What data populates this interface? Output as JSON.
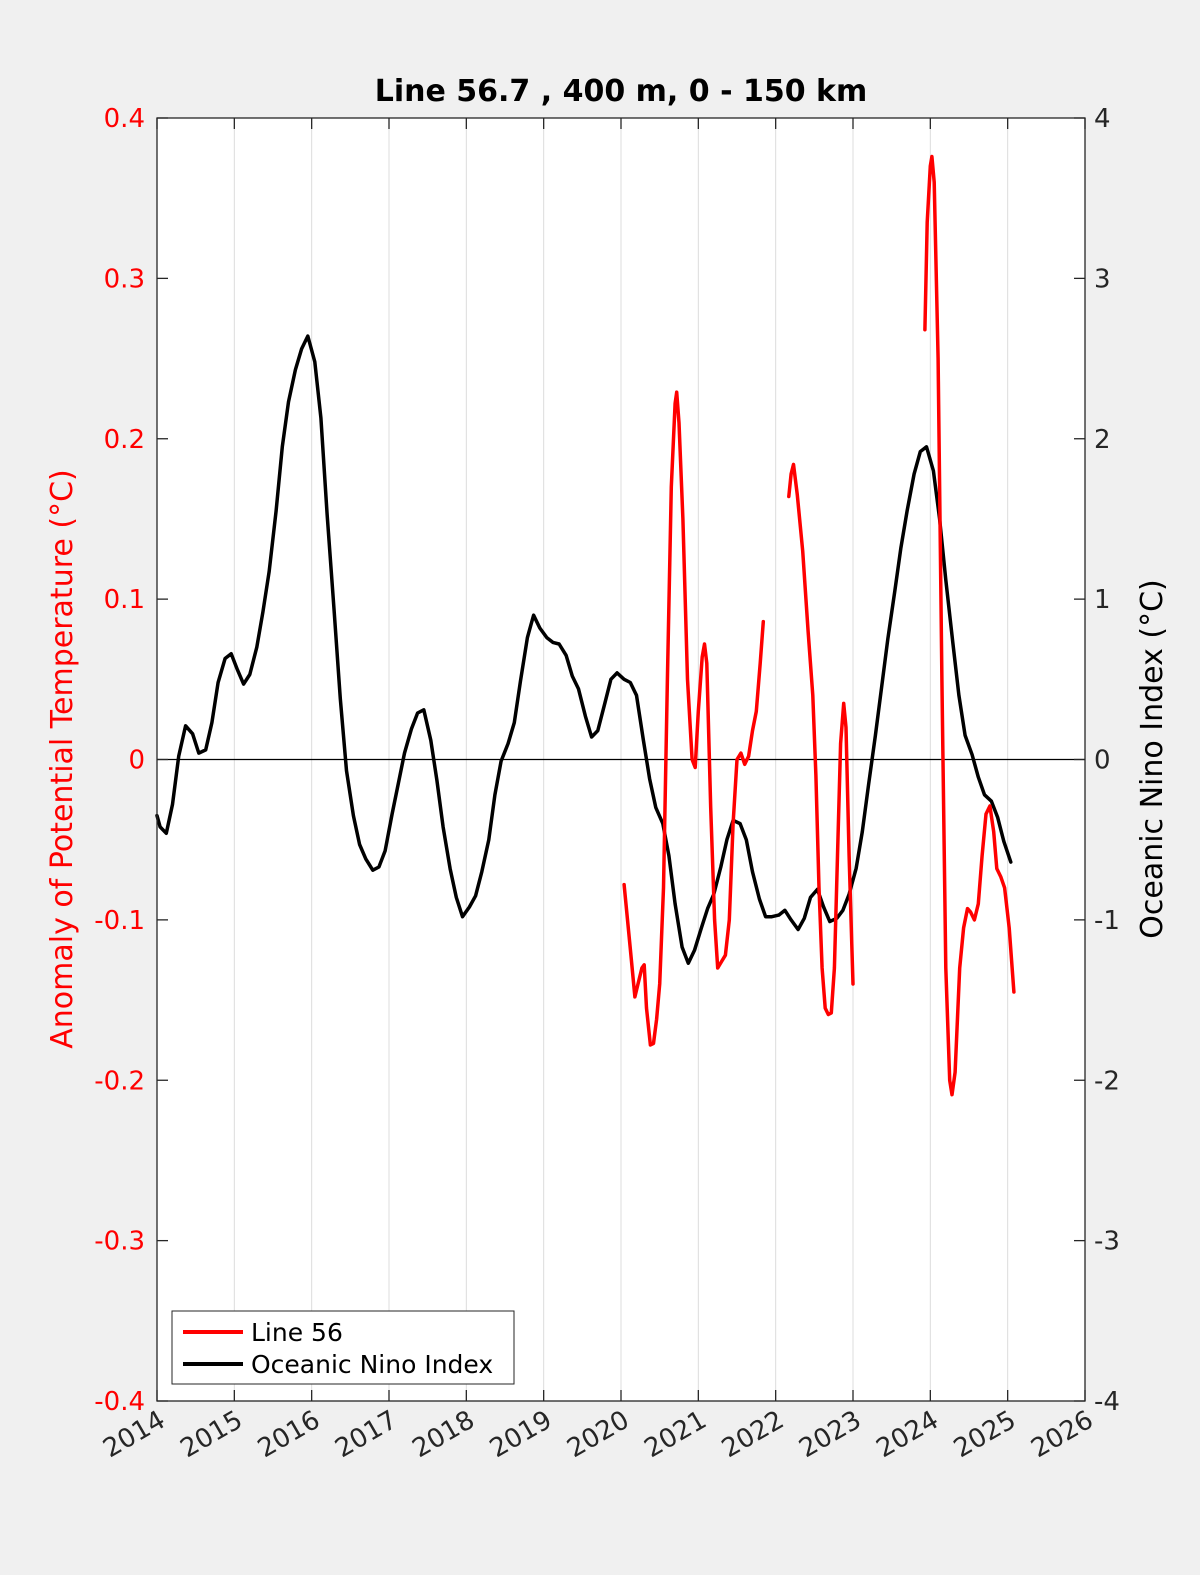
{
  "chart_data": {
    "type": "line",
    "title": "Line 56.7 , 400 m, 0 - 150 km",
    "xlim": [
      2014,
      2026
    ],
    "x_ticks": [
      "2014",
      "2015",
      "2016",
      "2017",
      "2018",
      "2019",
      "2020",
      "2021",
      "2022",
      "2023",
      "2024",
      "2025",
      "2026"
    ],
    "ylabel_left": "Anomaly of Potential Temperature (°C)",
    "ylim_left": [
      -0.4,
      0.4
    ],
    "y_ticks_left": [
      "-0.4",
      "-0.3",
      "-0.2",
      "-0.1",
      "0",
      "0.1",
      "0.2",
      "0.3",
      "0.4"
    ],
    "ylabel_right": "Oceanic Nino Index (°C)",
    "ylim_right": [
      -4,
      4
    ],
    "y_ticks_right": [
      "-4",
      "-3",
      "-2",
      "-1",
      "0",
      "1",
      "2",
      "3",
      "4"
    ],
    "grid": "vertical",
    "zero_line": true,
    "legend_position": "bottom-left",
    "colors": {
      "line56": "#ff0000",
      "oni": "#000000"
    },
    "series": [
      {
        "name": "Line 56",
        "axis": "left",
        "segments": [
          [
            [
              2020.04,
              -0.078
            ],
            [
              2020.12,
              -0.118
            ],
            [
              2020.18,
              -0.148
            ],
            [
              2020.22,
              -0.14
            ],
            [
              2020.27,
              -0.13
            ],
            [
              2020.3,
              -0.128
            ],
            [
              2020.33,
              -0.155
            ],
            [
              2020.38,
              -0.178
            ],
            [
              2020.42,
              -0.177
            ],
            [
              2020.46,
              -0.162
            ],
            [
              2020.5,
              -0.14
            ],
            [
              2020.55,
              -0.08
            ],
            [
              2020.6,
              0.05
            ],
            [
              2020.65,
              0.17
            ],
            [
              2020.7,
              0.222
            ],
            [
              2020.72,
              0.229
            ],
            [
              2020.75,
              0.21
            ],
            [
              2020.8,
              0.15
            ],
            [
              2020.86,
              0.05
            ],
            [
              2020.92,
              0.0
            ],
            [
              2020.96,
              -0.005
            ],
            [
              2021.0,
              0.03
            ],
            [
              2021.05,
              0.064
            ],
            [
              2021.08,
              0.072
            ],
            [
              2021.11,
              0.06
            ],
            [
              2021.16,
              -0.03
            ],
            [
              2021.21,
              -0.1
            ],
            [
              2021.25,
              -0.13
            ],
            [
              2021.3,
              -0.126
            ],
            [
              2021.35,
              -0.122
            ],
            [
              2021.4,
              -0.1
            ],
            [
              2021.45,
              -0.04
            ],
            [
              2021.5,
              0.0
            ],
            [
              2021.55,
              0.004
            ],
            [
              2021.6,
              -0.003
            ],
            [
              2021.65,
              0.002
            ],
            [
              2021.7,
              0.018
            ],
            [
              2021.75,
              0.03
            ],
            [
              2021.8,
              0.06
            ],
            [
              2021.84,
              0.086
            ]
          ],
          [
            [
              2022.17,
              0.164
            ],
            [
              2022.2,
              0.178
            ],
            [
              2022.23,
              0.184
            ],
            [
              2022.28,
              0.165
            ],
            [
              2022.35,
              0.13
            ],
            [
              2022.42,
              0.08
            ],
            [
              2022.48,
              0.04
            ],
            [
              2022.52,
              -0.01
            ],
            [
              2022.56,
              -0.08
            ],
            [
              2022.6,
              -0.13
            ],
            [
              2022.64,
              -0.155
            ],
            [
              2022.68,
              -0.159
            ],
            [
              2022.72,
              -0.158
            ],
            [
              2022.76,
              -0.13
            ],
            [
              2022.8,
              -0.06
            ],
            [
              2022.84,
              0.01
            ],
            [
              2022.88,
              0.035
            ],
            [
              2022.91,
              0.02
            ],
            [
              2022.95,
              -0.06
            ],
            [
              2023.0,
              -0.14
            ]
          ],
          [
            [
              2023.93,
              0.268
            ],
            [
              2023.96,
              0.335
            ],
            [
              2024.0,
              0.37
            ],
            [
              2024.02,
              0.376
            ],
            [
              2024.05,
              0.36
            ],
            [
              2024.1,
              0.25
            ],
            [
              2024.15,
              0.05
            ],
            [
              2024.2,
              -0.13
            ],
            [
              2024.25,
              -0.2
            ],
            [
              2024.28,
              -0.209
            ],
            [
              2024.32,
              -0.195
            ],
            [
              2024.38,
              -0.13
            ],
            [
              2024.43,
              -0.105
            ],
            [
              2024.48,
              -0.093
            ],
            [
              2024.52,
              -0.095
            ],
            [
              2024.57,
              -0.1
            ],
            [
              2024.62,
              -0.09
            ],
            [
              2024.67,
              -0.06
            ],
            [
              2024.72,
              -0.034
            ],
            [
              2024.77,
              -0.029
            ],
            [
              2024.82,
              -0.045
            ],
            [
              2024.86,
              -0.068
            ],
            [
              2024.91,
              -0.073
            ],
            [
              2024.96,
              -0.08
            ],
            [
              2025.02,
              -0.105
            ],
            [
              2025.08,
              -0.145
            ]
          ]
        ]
      },
      {
        "name": "Oceanic Nino Index",
        "axis": "right",
        "segments": [
          [
            [
              2014.0,
              -0.35
            ],
            [
              2014.04,
              -0.42
            ],
            [
              2014.12,
              -0.46
            ],
            [
              2014.2,
              -0.28
            ],
            [
              2014.28,
              0.02
            ],
            [
              2014.37,
              0.21
            ],
            [
              2014.46,
              0.16
            ],
            [
              2014.54,
              0.04
            ],
            [
              2014.63,
              0.06
            ],
            [
              2014.71,
              0.23
            ],
            [
              2014.79,
              0.48
            ],
            [
              2014.88,
              0.63
            ],
            [
              2014.96,
              0.66
            ],
            [
              2015.04,
              0.56
            ],
            [
              2015.12,
              0.47
            ],
            [
              2015.2,
              0.53
            ],
            [
              2015.29,
              0.7
            ],
            [
              2015.37,
              0.92
            ],
            [
              2015.45,
              1.17
            ],
            [
              2015.54,
              1.55
            ],
            [
              2015.62,
              1.95
            ],
            [
              2015.7,
              2.23
            ],
            [
              2015.79,
              2.43
            ],
            [
              2015.87,
              2.56
            ],
            [
              2015.95,
              2.64
            ],
            [
              2016.04,
              2.48
            ],
            [
              2016.12,
              2.13
            ],
            [
              2016.2,
              1.53
            ],
            [
              2016.29,
              0.93
            ],
            [
              2016.37,
              0.38
            ],
            [
              2016.45,
              -0.07
            ],
            [
              2016.54,
              -0.35
            ],
            [
              2016.62,
              -0.53
            ],
            [
              2016.7,
              -0.62
            ],
            [
              2016.79,
              -0.69
            ],
            [
              2016.87,
              -0.67
            ],
            [
              2016.95,
              -0.57
            ],
            [
              2017.04,
              -0.34
            ],
            [
              2017.12,
              -0.15
            ],
            [
              2017.2,
              0.04
            ],
            [
              2017.29,
              0.19
            ],
            [
              2017.37,
              0.29
            ],
            [
              2017.45,
              0.31
            ],
            [
              2017.54,
              0.12
            ],
            [
              2017.62,
              -0.13
            ],
            [
              2017.7,
              -0.42
            ],
            [
              2017.79,
              -0.68
            ],
            [
              2017.87,
              -0.86
            ],
            [
              2017.95,
              -0.98
            ],
            [
              2018.04,
              -0.92
            ],
            [
              2018.12,
              -0.85
            ],
            [
              2018.2,
              -0.7
            ],
            [
              2018.29,
              -0.5
            ],
            [
              2018.37,
              -0.22
            ],
            [
              2018.45,
              -0.01
            ],
            [
              2018.54,
              0.1
            ],
            [
              2018.62,
              0.23
            ],
            [
              2018.7,
              0.49
            ],
            [
              2018.79,
              0.76
            ],
            [
              2018.87,
              0.9
            ],
            [
              2018.95,
              0.82
            ],
            [
              2019.04,
              0.76
            ],
            [
              2019.12,
              0.73
            ],
            [
              2019.2,
              0.72
            ],
            [
              2019.29,
              0.65
            ],
            [
              2019.37,
              0.52
            ],
            [
              2019.45,
              0.44
            ],
            [
              2019.54,
              0.27
            ],
            [
              2019.62,
              0.14
            ],
            [
              2019.7,
              0.18
            ],
            [
              2019.79,
              0.35
            ],
            [
              2019.87,
              0.5
            ],
            [
              2019.95,
              0.54
            ],
            [
              2020.04,
              0.5
            ],
            [
              2020.12,
              0.48
            ],
            [
              2020.2,
              0.4
            ],
            [
              2020.29,
              0.12
            ],
            [
              2020.37,
              -0.12
            ],
            [
              2020.45,
              -0.3
            ],
            [
              2020.54,
              -0.4
            ],
            [
              2020.62,
              -0.6
            ],
            [
              2020.7,
              -0.9
            ],
            [
              2020.79,
              -1.17
            ],
            [
              2020.87,
              -1.27
            ],
            [
              2020.95,
              -1.19
            ],
            [
              2021.04,
              -1.05
            ],
            [
              2021.12,
              -0.93
            ],
            [
              2021.2,
              -0.84
            ],
            [
              2021.29,
              -0.67
            ],
            [
              2021.37,
              -0.5
            ],
            [
              2021.45,
              -0.38
            ],
            [
              2021.54,
              -0.4
            ],
            [
              2021.62,
              -0.5
            ],
            [
              2021.7,
              -0.7
            ],
            [
              2021.79,
              -0.87
            ],
            [
              2021.87,
              -0.98
            ],
            [
              2021.95,
              -0.98
            ],
            [
              2022.04,
              -0.97
            ],
            [
              2022.12,
              -0.94
            ],
            [
              2022.2,
              -1.0
            ],
            [
              2022.29,
              -1.06
            ],
            [
              2022.37,
              -0.99
            ],
            [
              2022.45,
              -0.86
            ],
            [
              2022.54,
              -0.81
            ],
            [
              2022.62,
              -0.92
            ],
            [
              2022.7,
              -1.01
            ],
            [
              2022.79,
              -0.99
            ],
            [
              2022.87,
              -0.94
            ],
            [
              2022.95,
              -0.84
            ],
            [
              2023.04,
              -0.68
            ],
            [
              2023.12,
              -0.45
            ],
            [
              2023.2,
              -0.16
            ],
            [
              2023.29,
              0.15
            ],
            [
              2023.37,
              0.45
            ],
            [
              2023.45,
              0.75
            ],
            [
              2023.54,
              1.05
            ],
            [
              2023.62,
              1.32
            ],
            [
              2023.7,
              1.55
            ],
            [
              2023.79,
              1.78
            ],
            [
              2023.87,
              1.92
            ],
            [
              2023.95,
              1.95
            ],
            [
              2024.04,
              1.8
            ],
            [
              2024.12,
              1.5
            ],
            [
              2024.2,
              1.12
            ],
            [
              2024.29,
              0.73
            ],
            [
              2024.37,
              0.4
            ],
            [
              2024.45,
              0.15
            ],
            [
              2024.54,
              0.03
            ],
            [
              2024.62,
              -0.11
            ],
            [
              2024.7,
              -0.22
            ],
            [
              2024.79,
              -0.26
            ],
            [
              2024.87,
              -0.36
            ],
            [
              2024.95,
              -0.51
            ],
            [
              2025.04,
              -0.64
            ]
          ]
        ]
      }
    ]
  }
}
